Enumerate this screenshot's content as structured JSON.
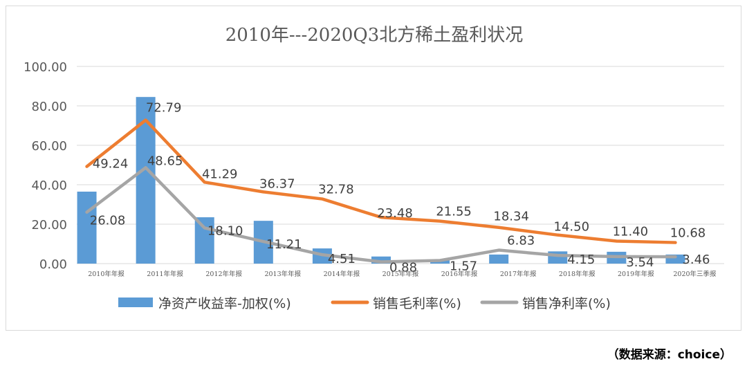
{
  "chart_data": {
    "type": "bar+line",
    "title": "2010年---2020Q3北方稀土盈利状况",
    "categories": [
      "2010年年报",
      "2011年年报",
      "2012年年报",
      "2013年年报",
      "2014年年报",
      "2015年年报",
      "2016年年报",
      "2017年年报",
      "2018年年报",
      "2019年年报",
      "2020年三季报"
    ],
    "ylim": [
      0,
      100
    ],
    "yticks": [
      "0.00",
      "20.00",
      "40.00",
      "60.00",
      "80.00",
      "100.00"
    ],
    "grid": true,
    "legend_position": "bottom",
    "series": [
      {
        "name": "净资产收益率-加权(%)",
        "type": "bar",
        "color": "#5B9BD5",
        "values": [
          36.5,
          84.5,
          23.5,
          21.7,
          7.7,
          3.6,
          1.6,
          4.6,
          6.2,
          6.0,
          4.6
        ]
      },
      {
        "name": "销售毛利率(%)",
        "type": "line",
        "color": "#ED7D31",
        "values": [
          49.24,
          72.79,
          41.29,
          36.37,
          32.78,
          23.48,
          21.55,
          18.34,
          14.5,
          11.4,
          10.68
        ],
        "labels": [
          "49.24",
          "72.79",
          "41.29",
          "36.37",
          "32.78",
          "23.48",
          "21.55",
          "18.34",
          "14.50",
          "11.40",
          "10.68"
        ]
      },
      {
        "name": "销售净利率(%)",
        "type": "line",
        "color": "#A5A5A5",
        "values": [
          26.08,
          48.65,
          18.1,
          11.21,
          4.51,
          0.88,
          1.57,
          6.83,
          4.15,
          3.54,
          3.46
        ],
        "labels": [
          "26.08",
          "48.65",
          "18.10",
          "11.21",
          "4.51",
          "0.88",
          "1.57",
          "6.83",
          "4.15",
          "3.54",
          "3.46"
        ]
      }
    ]
  },
  "source_note": "（数据来源：choice）"
}
